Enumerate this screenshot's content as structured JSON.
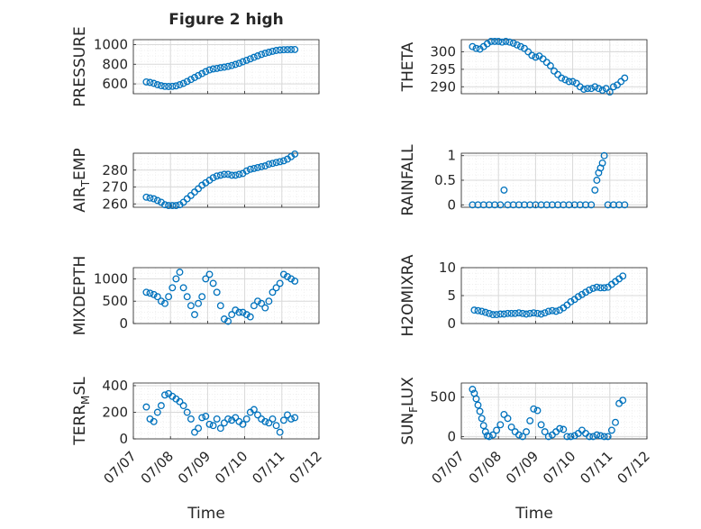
{
  "figure": {
    "title": "Figure 2 high",
    "xlabel": "Time"
  },
  "colors": {
    "marker": "#0072BD",
    "grid": "#d9d9d9",
    "axis": "#262626"
  },
  "x_ticks": [
    "07/07",
    "07/08",
    "07/09",
    "07/10",
    "07/11",
    "07/12"
  ],
  "chart_data": [
    {
      "type": "scatter",
      "ylabel": "PRESSURE",
      "ylim": [
        500,
        1050
      ],
      "yticks": [
        600,
        800,
        1000
      ],
      "xlim": [
        0,
        5
      ],
      "grid": true,
      "marker": "o",
      "series": [
        {
          "x": [
            0.35,
            0.45,
            0.55,
            0.65,
            0.75,
            0.85,
            0.95,
            1.05,
            1.15,
            1.25,
            1.35,
            1.45,
            1.55,
            1.65,
            1.75,
            1.85,
            1.95,
            2.05,
            2.15,
            2.25,
            2.35,
            2.45,
            2.55,
            2.65,
            2.75,
            2.85,
            2.95,
            3.05,
            3.15,
            3.25,
            3.35,
            3.45,
            3.55,
            3.65,
            3.75,
            3.85,
            3.95,
            4.05,
            4.15,
            4.25,
            4.35
          ],
          "y": [
            620,
            615,
            605,
            592,
            582,
            575,
            573,
            575,
            580,
            592,
            605,
            625,
            645,
            665,
            685,
            705,
            725,
            742,
            752,
            758,
            765,
            770,
            778,
            787,
            798,
            810,
            825,
            840,
            855,
            870,
            885,
            900,
            912,
            922,
            932,
            940,
            945,
            947,
            948,
            949,
            950
          ]
        }
      ]
    },
    {
      "type": "scatter",
      "ylabel": "THETA",
      "ylim": [
        288,
        303.5
      ],
      "yticks": [
        290,
        295,
        300
      ],
      "xlim": [
        0,
        5
      ],
      "grid": true,
      "marker": "o",
      "series": [
        {
          "x": [
            0.3,
            0.4,
            0.5,
            0.6,
            0.7,
            0.8,
            0.9,
            1.0,
            1.1,
            1.2,
            1.3,
            1.4,
            1.5,
            1.6,
            1.7,
            1.8,
            1.9,
            2.0,
            2.1,
            2.2,
            2.3,
            2.4,
            2.5,
            2.6,
            2.7,
            2.8,
            2.9,
            3.0,
            3.1,
            3.2,
            3.3,
            3.4,
            3.5,
            3.6,
            3.7,
            3.8,
            3.9,
            4.0,
            4.1,
            4.2,
            4.3,
            4.4
          ],
          "y": [
            301.5,
            301,
            300.8,
            301.5,
            302.3,
            303,
            303,
            303,
            302.8,
            303,
            302.8,
            302.5,
            302,
            301.5,
            301,
            300,
            299,
            298.5,
            298.8,
            298,
            297,
            296,
            294.5,
            293.5,
            292.5,
            292,
            291.5,
            291.5,
            291,
            290,
            289.3,
            289.5,
            289.5,
            290,
            289.5,
            289,
            289.5,
            288.5,
            290,
            290.5,
            291.5,
            292.5
          ]
        }
      ]
    },
    {
      "type": "scatter",
      "ylabel": "AIR",
      "ylabel_sub": "T",
      "ylabel_after": "EMP",
      "ylim": [
        258,
        290
      ],
      "yticks": [
        260,
        270,
        280
      ],
      "xlim": [
        0,
        5
      ],
      "grid": true,
      "marker": "o",
      "series": [
        {
          "x": [
            0.35,
            0.45,
            0.55,
            0.65,
            0.75,
            0.85,
            0.95,
            1.05,
            1.15,
            1.25,
            1.35,
            1.45,
            1.55,
            1.65,
            1.75,
            1.85,
            1.95,
            2.05,
            2.15,
            2.25,
            2.35,
            2.45,
            2.55,
            2.65,
            2.75,
            2.85,
            2.95,
            3.05,
            3.15,
            3.25,
            3.35,
            3.45,
            3.55,
            3.65,
            3.75,
            3.85,
            3.95,
            4.05,
            4.15,
            4.25,
            4.35
          ],
          "y": [
            264,
            263.5,
            263,
            262,
            261,
            259.5,
            259,
            259,
            259,
            259.5,
            261,
            263,
            265,
            267,
            269,
            271,
            272.5,
            274,
            275.5,
            276.5,
            277,
            277.5,
            277.5,
            277,
            277,
            277.5,
            278,
            279.5,
            280.5,
            281,
            281.5,
            282,
            282.5,
            283.5,
            284,
            284.5,
            285,
            285.5,
            286.5,
            288,
            289.5
          ]
        }
      ]
    },
    {
      "type": "scatter",
      "ylabel": "RAINFALL",
      "ylim": [
        -0.05,
        1.05
      ],
      "yticks": [
        0,
        0.5,
        1
      ],
      "yticklabels": [
        "0",
        "0.5",
        "1"
      ],
      "xlim": [
        0,
        5
      ],
      "grid": true,
      "marker": "o",
      "series": [
        {
          "x": [
            0.3,
            0.45,
            0.6,
            0.75,
            0.9,
            1.05,
            1.15,
            1.25,
            1.4,
            1.55,
            1.7,
            1.85,
            2.0,
            2.15,
            2.3,
            2.45,
            2.6,
            2.75,
            2.9,
            3.05,
            3.2,
            3.35,
            3.5,
            3.6,
            3.65,
            3.7,
            3.75,
            3.8,
            3.85,
            3.95,
            4.1,
            4.25,
            4.4
          ],
          "y": [
            0,
            0,
            0,
            0,
            0,
            0,
            0.3,
            0,
            0,
            0,
            0,
            0,
            0,
            0,
            0,
            0,
            0,
            0,
            0,
            0,
            0,
            0,
            0,
            0.3,
            0.5,
            0.65,
            0.75,
            0.85,
            1.0,
            0,
            0,
            0,
            0
          ]
        }
      ]
    },
    {
      "type": "scatter",
      "ylabel": "MIXDEPTH",
      "ylim": [
        0,
        1250
      ],
      "yticks": [
        0,
        500,
        1000
      ],
      "xlim": [
        0,
        5
      ],
      "grid": true,
      "marker": "o",
      "series": [
        {
          "x": [
            0.35,
            0.45,
            0.55,
            0.65,
            0.75,
            0.85,
            0.95,
            1.05,
            1.15,
            1.25,
            1.35,
            1.45,
            1.55,
            1.65,
            1.75,
            1.85,
            1.95,
            2.05,
            2.15,
            2.25,
            2.35,
            2.45,
            2.55,
            2.65,
            2.75,
            2.85,
            2.95,
            3.05,
            3.15,
            3.25,
            3.35,
            3.45,
            3.55,
            3.65,
            3.75,
            3.85,
            3.95,
            4.05,
            4.15,
            4.25,
            4.35
          ],
          "y": [
            700,
            680,
            650,
            600,
            500,
            450,
            600,
            800,
            1000,
            1150,
            800,
            600,
            400,
            200,
            450,
            600,
            1000,
            1100,
            900,
            700,
            400,
            100,
            50,
            200,
            300,
            250,
            250,
            200,
            150,
            400,
            500,
            450,
            350,
            500,
            700,
            800,
            900,
            1100,
            1050,
            1000,
            950
          ]
        }
      ]
    },
    {
      "type": "scatter",
      "ylabel": "H2OMIXRA",
      "ylim": [
        0,
        10
      ],
      "yticks": [
        0,
        5,
        10
      ],
      "xlim": [
        0,
        5
      ],
      "grid": true,
      "marker": "o",
      "series": [
        {
          "x": [
            0.35,
            0.45,
            0.55,
            0.65,
            0.75,
            0.85,
            0.95,
            1.05,
            1.15,
            1.25,
            1.35,
            1.45,
            1.55,
            1.65,
            1.75,
            1.85,
            1.95,
            2.05,
            2.15,
            2.25,
            2.35,
            2.45,
            2.55,
            2.65,
            2.75,
            2.85,
            2.95,
            3.05,
            3.15,
            3.25,
            3.35,
            3.45,
            3.55,
            3.65,
            3.75,
            3.85,
            3.95,
            4.05,
            4.15,
            4.25,
            4.35
          ],
          "y": [
            2.4,
            2.3,
            2.2,
            2.0,
            1.8,
            1.6,
            1.6,
            1.7,
            1.7,
            1.8,
            1.8,
            1.8,
            1.9,
            1.8,
            1.7,
            1.8,
            1.9,
            1.8,
            1.7,
            1.9,
            2.2,
            2.3,
            2.2,
            2.4,
            2.8,
            3.3,
            3.9,
            4.3,
            4.8,
            5.2,
            5.6,
            6.0,
            6.3,
            6.5,
            6.4,
            6.4,
            6.5,
            7.0,
            7.5,
            8.0,
            8.5
          ]
        }
      ]
    },
    {
      "type": "scatter",
      "ylabel": "TERR",
      "ylabel_sub": "M",
      "ylabel_after": "SL",
      "ylim": [
        0,
        420
      ],
      "yticks": [
        0,
        200,
        400
      ],
      "xlim": [
        0,
        5
      ],
      "grid": true,
      "marker": "o",
      "series": [
        {
          "x": [
            0.35,
            0.45,
            0.55,
            0.65,
            0.75,
            0.85,
            0.95,
            1.05,
            1.15,
            1.25,
            1.35,
            1.45,
            1.55,
            1.65,
            1.75,
            1.85,
            1.95,
            2.05,
            2.15,
            2.25,
            2.35,
            2.45,
            2.55,
            2.65,
            2.75,
            2.85,
            2.95,
            3.05,
            3.15,
            3.25,
            3.35,
            3.45,
            3.55,
            3.65,
            3.75,
            3.85,
            3.95,
            4.05,
            4.15,
            4.25,
            4.35
          ],
          "y": [
            240,
            150,
            130,
            200,
            250,
            330,
            340,
            320,
            300,
            280,
            250,
            200,
            150,
            50,
            80,
            160,
            170,
            110,
            100,
            150,
            80,
            120,
            150,
            140,
            160,
            130,
            110,
            150,
            200,
            220,
            180,
            150,
            130,
            120,
            150,
            100,
            50,
            140,
            180,
            150,
            160
          ]
        }
      ]
    },
    {
      "type": "scatter",
      "ylabel": "SUN",
      "ylabel_sub": "F",
      "ylabel_after": "LUX",
      "ylim": [
        -30,
        680
      ],
      "yticks": [
        0,
        500
      ],
      "xlim": [
        0,
        5
      ],
      "grid": true,
      "marker": "o",
      "series": [
        {
          "x": [
            0.3,
            0.35,
            0.4,
            0.45,
            0.5,
            0.55,
            0.6,
            0.65,
            0.7,
            0.75,
            0.85,
            0.95,
            1.05,
            1.15,
            1.25,
            1.35,
            1.45,
            1.55,
            1.65,
            1.75,
            1.85,
            1.95,
            2.05,
            2.15,
            2.25,
            2.35,
            2.45,
            2.55,
            2.65,
            2.75,
            2.85,
            2.95,
            3.05,
            3.15,
            3.25,
            3.35,
            3.45,
            3.55,
            3.65,
            3.75,
            3.85,
            3.95,
            4.05,
            4.15,
            4.25,
            4.35
          ],
          "y": [
            600,
            550,
            480,
            400,
            320,
            230,
            140,
            60,
            10,
            0,
            20,
            80,
            150,
            280,
            230,
            120,
            60,
            20,
            0,
            60,
            200,
            350,
            330,
            150,
            60,
            0,
            20,
            60,
            100,
            90,
            0,
            0,
            10,
            40,
            80,
            40,
            0,
            0,
            20,
            10,
            0,
            0,
            80,
            180,
            420,
            460
          ]
        }
      ]
    }
  ]
}
